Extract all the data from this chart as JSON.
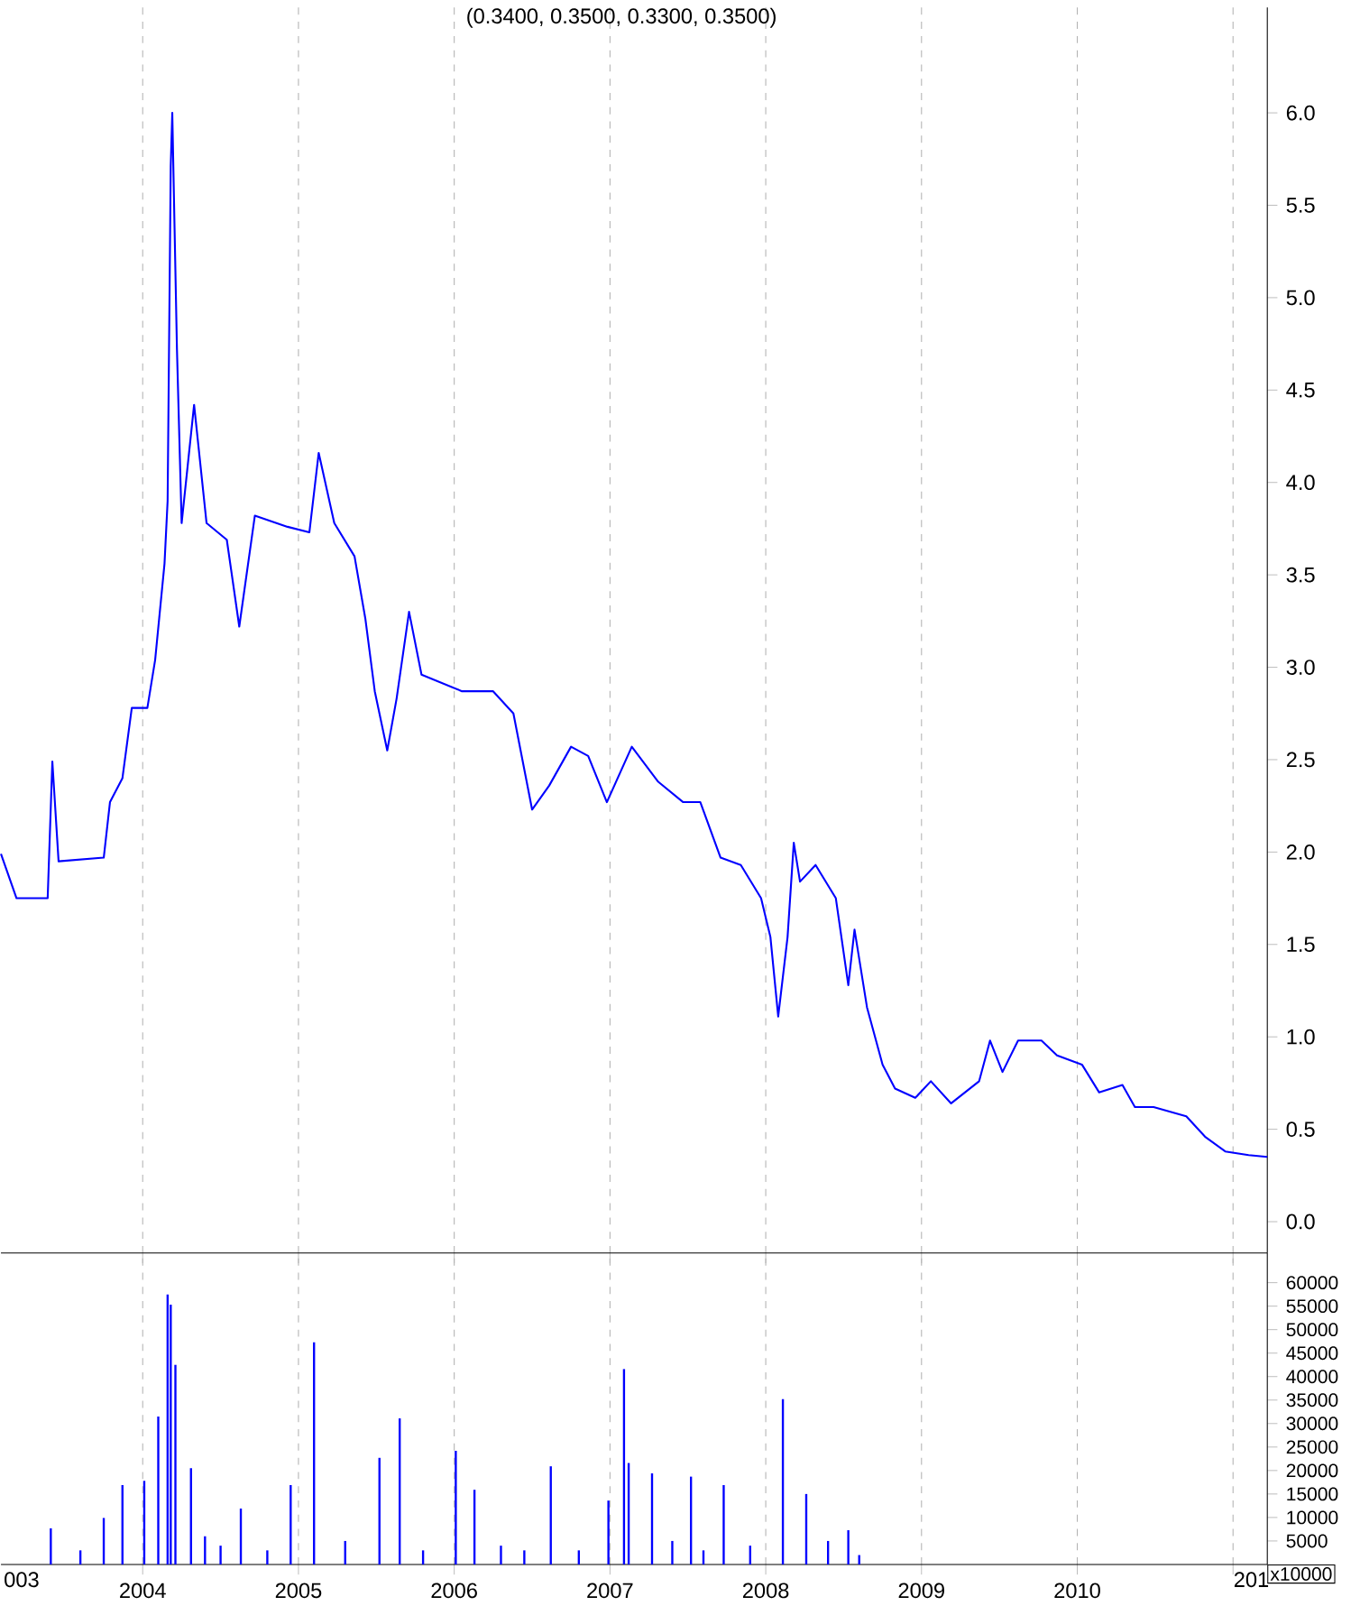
{
  "chart_data": [
    {
      "type": "line",
      "title": "(0.3400, 0.3500, 0.3300, 0.3500)",
      "grid": "x",
      "tick_labels": "y",
      "xlim": [
        2003.09,
        2011.22
      ],
      "ylim": [
        -0.17,
        6.57
      ],
      "xticks": [
        2004,
        2005,
        2006,
        2007,
        2008,
        2009,
        2010,
        {
          "value": 2011,
          "label": null
        }
      ],
      "yticks": [
        {
          "value": 0,
          "label": "0.0"
        },
        0.5,
        {
          "value": 1,
          "label": "1.0"
        },
        1.5,
        {
          "value": 2,
          "label": "2.0"
        },
        2.5,
        {
          "value": 3,
          "label": "3.0"
        },
        3.5,
        {
          "value": 4,
          "label": "4.0"
        },
        4.5,
        {
          "value": 5,
          "label": "5.0"
        },
        5.5,
        {
          "value": 6,
          "label": "6.0"
        }
      ],
      "series": [
        {
          "color": "#0000ff",
          "x": [
            2003.09,
            2003.19,
            2003.39,
            2003.42,
            2003.46,
            2003.75,
            2003.79,
            2003.87,
            2003.93,
            2004.03,
            2004.08,
            2004.14,
            2004.16,
            2004.18,
            2004.19,
            2004.22,
            2004.25,
            2004.33,
            2004.41,
            2004.54,
            2004.62,
            2004.72,
            2004.93,
            2005.07,
            2005.13,
            2005.23,
            2005.36,
            2005.43,
            2005.49,
            2005.57,
            2005.63,
            2005.71,
            2005.79,
            2006.05,
            2006.25,
            2006.38,
            2006.5,
            2006.61,
            2006.75,
            2006.86,
            2006.98,
            2007.14,
            2007.31,
            2007.47,
            2007.58,
            2007.71,
            2007.84,
            2007.97,
            2008.03,
            2008.08,
            2008.14,
            2008.18,
            2008.22,
            2008.32,
            2008.45,
            2008.53,
            2008.57,
            2008.65,
            2008.75,
            2008.83,
            2008.96,
            2009.06,
            2009.19,
            2009.37,
            2009.44,
            2009.52,
            2009.62,
            2009.77,
            2009.87,
            2010.03,
            2010.14,
            2010.29,
            2010.37,
            2010.49,
            2010.7,
            2010.82,
            2010.95,
            2011.1,
            2011.22
          ],
          "values": [
            1.99,
            1.75,
            1.75,
            2.49,
            1.95,
            1.97,
            2.27,
            2.4,
            2.78,
            2.78,
            3.04,
            3.56,
            3.9,
            5.71,
            6.0,
            4.72,
            3.78,
            4.42,
            3.78,
            3.69,
            3.22,
            3.82,
            3.76,
            3.73,
            4.16,
            3.78,
            3.6,
            3.26,
            2.87,
            2.55,
            2.83,
            3.3,
            2.96,
            2.87,
            2.87,
            2.75,
            2.23,
            2.36,
            2.57,
            2.52,
            2.27,
            2.57,
            2.38,
            2.27,
            2.27,
            1.97,
            1.93,
            1.75,
            1.54,
            1.11,
            1.54,
            2.05,
            1.84,
            1.93,
            1.75,
            1.28,
            1.58,
            1.16,
            0.85,
            0.72,
            0.67,
            0.76,
            0.64,
            0.76,
            0.98,
            0.81,
            0.98,
            0.98,
            0.9,
            0.85,
            0.7,
            0.74,
            0.62,
            0.62,
            0.57,
            0.46,
            0.38,
            0.36,
            0.35
          ]
        }
      ]
    },
    {
      "type": "bar",
      "grid": "x",
      "annotations": [
        "x10000",
        "003",
        "201"
      ],
      "xlim": [
        2003.09,
        2011.22
      ],
      "ylim": [
        0,
        66300
      ],
      "xticks": [
        2004,
        2005,
        2006,
        2007,
        2008,
        2009,
        2010,
        {
          "value": 2011,
          "label": null
        }
      ],
      "yticks": [
        5000,
        10000,
        15000,
        20000,
        25000,
        30000,
        35000,
        40000,
        45000,
        50000,
        55000,
        60000
      ],
      "series": [
        {
          "color": "#0000ff",
          "x": [
            2003.41,
            2003.6,
            2003.75,
            2003.87,
            2004.01,
            2004.1,
            2004.16,
            2004.18,
            2004.21,
            2004.31,
            2004.4,
            2004.5,
            2004.63,
            2004.8,
            2004.95,
            2005.1,
            2005.3,
            2005.52,
            2005.65,
            2005.8,
            2006.01,
            2006.13,
            2006.3,
            2006.45,
            2006.62,
            2006.8,
            2006.99,
            2007.09,
            2007.12,
            2007.27,
            2007.4,
            2007.52,
            2007.6,
            2007.73,
            2007.9,
            2008.11,
            2008.26,
            2008.4,
            2008.53,
            2008.6
          ],
          "values": [
            7700,
            3000,
            9900,
            16900,
            17800,
            31500,
            57500,
            55300,
            42500,
            20500,
            6000,
            4000,
            11900,
            3000,
            16900,
            47300,
            5000,
            22700,
            31100,
            3000,
            24200,
            15900,
            4000,
            3000,
            20900,
            3000,
            13600,
            41600,
            21600,
            19400,
            5000,
            18700,
            3000,
            16900,
            4000,
            35200,
            15000,
            5000,
            7300,
            2000
          ]
        }
      ]
    }
  ]
}
